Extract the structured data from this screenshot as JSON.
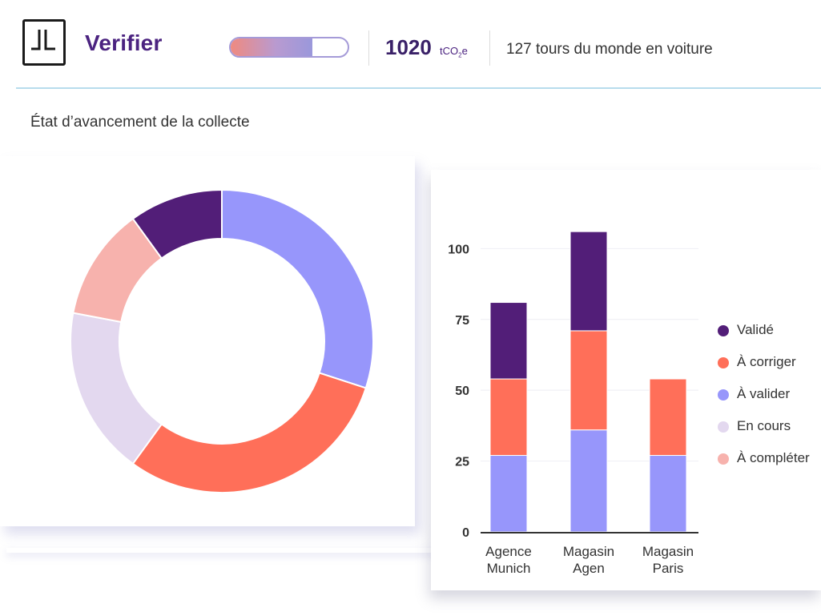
{
  "header": {
    "logo_icon": "verifier-logo-icon",
    "app_title": "Verifier",
    "progress_fraction": 0.7,
    "co2_value": "1020",
    "co2_unit_base": "tCO",
    "co2_unit_sub": "2",
    "co2_unit_tail": "e",
    "equivalence": "127 tours du monde en voiture"
  },
  "section_title": "État d’avancement de la collecte",
  "colors": {
    "valide": "#521e78",
    "a_corriger": "#ff6f59",
    "a_valider": "#9796fb",
    "en_cours": "#e3d8ef",
    "a_completer": "#f7b2ad",
    "accent": "#4b2380"
  },
  "chart_data": [
    {
      "type": "pie",
      "subtype": "donut",
      "slices": [
        {
          "name": "À valider",
          "value": 30
        },
        {
          "name": "À corriger",
          "value": 30
        },
        {
          "name": "En cours",
          "value": 18
        },
        {
          "name": "À compléter",
          "value": 12
        },
        {
          "name": "Validé",
          "value": 10
        }
      ]
    },
    {
      "type": "bar",
      "stacked": true,
      "categories": [
        [
          "Agence",
          "Munich"
        ],
        [
          "Magasin",
          "Agen"
        ],
        [
          "Magasin",
          "Paris"
        ]
      ],
      "series": [
        {
          "name": "À valider",
          "values": [
            27,
            36,
            27
          ]
        },
        {
          "name": "À corriger",
          "values": [
            27,
            35,
            27
          ]
        },
        {
          "name": "Validé",
          "values": [
            27,
            35,
            0
          ]
        }
      ],
      "ylim": [
        0,
        110
      ],
      "yticks": [
        0,
        25,
        50,
        75,
        100
      ],
      "legend": [
        "Validé",
        "À corriger",
        "À valider",
        "En cours",
        "À compléter"
      ],
      "legend_position": "right",
      "grid": true
    }
  ]
}
